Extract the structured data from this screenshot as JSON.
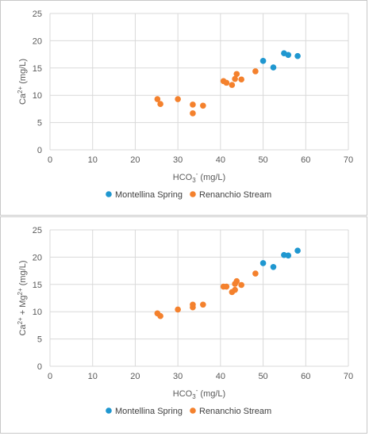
{
  "colors": {
    "montellina": "#1f97d0",
    "renanchio": "#f4812d",
    "grid": "#d9d9d9",
    "text": "#595959"
  },
  "chart_data": [
    {
      "type": "scatter",
      "xlabel": "HCO3- (mg/L)",
      "ylabel": "Ca2+ (mg/L)",
      "xlim": [
        0,
        70
      ],
      "ylim": [
        0,
        25
      ],
      "xticks": [
        0,
        10,
        20,
        30,
        40,
        50,
        60,
        70
      ],
      "yticks": [
        0,
        5,
        10,
        15,
        20,
        25
      ],
      "grid": true,
      "legend": "bottom",
      "series": [
        {
          "name": "Montellina Spring",
          "color": "#1f97d0",
          "points": [
            [
              50.0,
              16.3
            ],
            [
              52.4,
              15.1
            ],
            [
              54.9,
              17.7
            ],
            [
              55.9,
              17.4
            ],
            [
              58.1,
              17.2
            ]
          ]
        },
        {
          "name": "Renanchio Stream",
          "color": "#f4812d",
          "points": [
            [
              25.2,
              9.3
            ],
            [
              25.9,
              8.4
            ],
            [
              30.0,
              9.3
            ],
            [
              33.5,
              8.3
            ],
            [
              33.5,
              6.7
            ],
            [
              35.9,
              8.1
            ],
            [
              40.7,
              12.6
            ],
            [
              41.4,
              12.3
            ],
            [
              42.7,
              11.9
            ],
            [
              43.4,
              13.0
            ],
            [
              43.8,
              13.9
            ],
            [
              44.9,
              12.9
            ],
            [
              48.2,
              14.4
            ]
          ]
        }
      ]
    },
    {
      "type": "scatter",
      "xlabel": "HCO3- (mg/L)",
      "ylabel": "Ca2+ + Mg2+ (mg/L)",
      "xlim": [
        0,
        70
      ],
      "ylim": [
        0,
        25
      ],
      "xticks": [
        0,
        10,
        20,
        30,
        40,
        50,
        60,
        70
      ],
      "yticks": [
        0,
        5,
        10,
        15,
        20,
        25
      ],
      "grid": true,
      "legend": "bottom",
      "series": [
        {
          "name": "Montellina Spring",
          "color": "#1f97d0",
          "points": [
            [
              50.0,
              18.9
            ],
            [
              52.4,
              18.2
            ],
            [
              54.9,
              20.4
            ],
            [
              55.9,
              20.3
            ],
            [
              58.1,
              21.2
            ]
          ]
        },
        {
          "name": "Renanchio Stream",
          "color": "#f4812d",
          "points": [
            [
              25.2,
              9.7
            ],
            [
              25.9,
              9.2
            ],
            [
              30.0,
              10.4
            ],
            [
              33.5,
              11.3
            ],
            [
              33.5,
              10.8
            ],
            [
              35.9,
              11.3
            ],
            [
              40.7,
              14.6
            ],
            [
              41.4,
              14.6
            ],
            [
              42.7,
              13.6
            ],
            [
              43.4,
              14.0
            ],
            [
              43.8,
              15.6
            ],
            [
              43.4,
              15.1
            ],
            [
              44.9,
              14.9
            ],
            [
              48.2,
              17.0
            ]
          ]
        }
      ]
    }
  ]
}
